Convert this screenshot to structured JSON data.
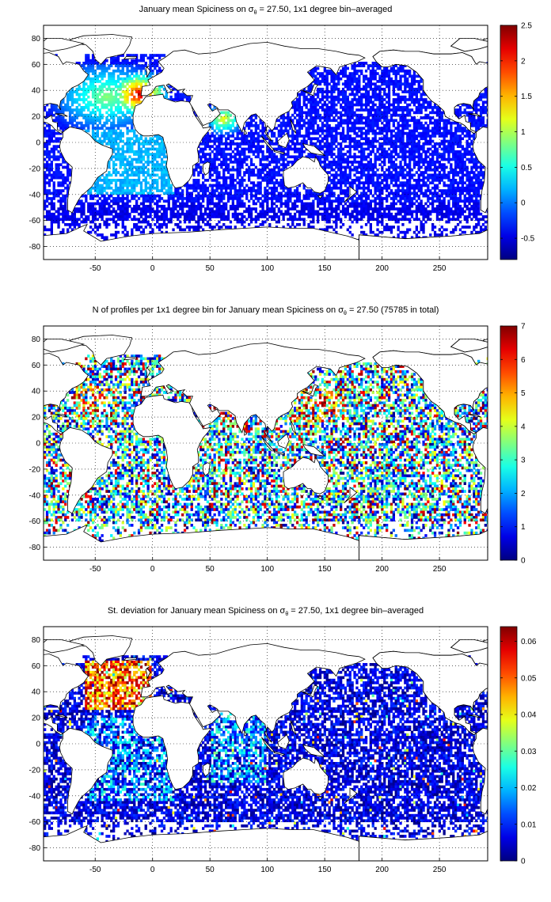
{
  "colors": {
    "land": "#ffffff",
    "coast": "#000000",
    "grid": "#000000",
    "colormap": "jet"
  },
  "panels": [
    {
      "title_before": "January mean Spiciness on ",
      "title_sigma": "σ",
      "title_sub": "θ",
      "title_after": " = 27.50, 1x1 degree bin–averaged",
      "variable": "spiciness",
      "colorbar": {
        "min": -0.8,
        "max": 2.5,
        "ticks": [
          "-0.5",
          "0",
          "0.5",
          "1",
          "1.5",
          "2",
          "2.5"
        ],
        "tick_values": [
          -0.5,
          0,
          0.5,
          1,
          1.5,
          2,
          2.5
        ]
      }
    },
    {
      "title_before": "N of profiles per 1x1 degree bin for January mean Spiciness on ",
      "title_sigma": "σ",
      "title_sub": "θ",
      "title_after": " = 27.50 (75785 in total)",
      "variable": "count",
      "colorbar": {
        "min": 0,
        "max": 7,
        "ticks": [
          "0",
          "1",
          "2",
          "3",
          "4",
          "5",
          "6",
          "7"
        ],
        "tick_values": [
          0,
          1,
          2,
          3,
          4,
          5,
          6,
          7
        ]
      }
    },
    {
      "title_before": "St. deviation for January mean Spiciness on ",
      "title_sigma": "σ",
      "title_sub": "θ",
      "title_after": " = 27.50, 1x1 degree bin–averaged",
      "variable": "stddev",
      "colorbar": {
        "min": 0,
        "max": 0.064,
        "ticks": [
          "0",
          "0.01",
          "0.02",
          "0.03",
          "0.04",
          "0.05",
          "0.06"
        ],
        "tick_values": [
          0,
          0.01,
          0.02,
          0.03,
          0.04,
          0.05,
          0.06
        ]
      }
    }
  ],
  "axes": {
    "lon_range": [
      -95,
      292
    ],
    "lat_range": [
      -90,
      90
    ],
    "x_ticks": [
      "-50",
      "0",
      "50",
      "100",
      "150",
      "200",
      "250"
    ],
    "x_tick_values": [
      -50,
      0,
      50,
      100,
      150,
      200,
      250
    ],
    "y_ticks": [
      "80",
      "60",
      "40",
      "20",
      "0",
      "-20",
      "-40",
      "-60",
      "-80"
    ],
    "y_tick_values": [
      80,
      60,
      40,
      20,
      0,
      -20,
      -40,
      -60,
      -80
    ],
    "grid": "dotted"
  }
}
